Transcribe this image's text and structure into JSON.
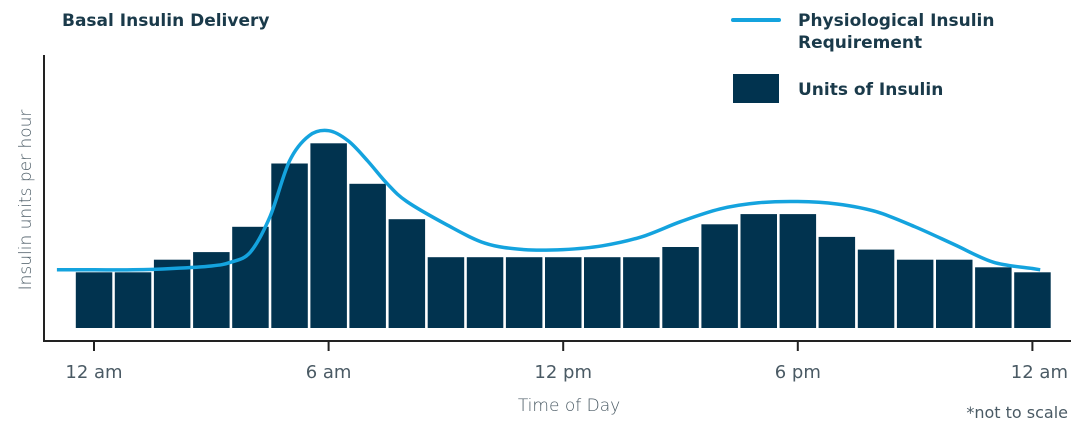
{
  "colors": {
    "bar": "#01334f",
    "line": "#14a3de",
    "title": "#1a3a4a",
    "text": "#4a5a64",
    "axis": "#222222"
  },
  "chart_data": {
    "type": "bar",
    "title": "Basal Insulin Delivery",
    "xlabel": "Time of Day",
    "ylabel": "Insulin units per hour",
    "footnote": "*not to scale",
    "x_ticks": [
      {
        "label": "12 am",
        "hour": 0
      },
      {
        "label": "6 am",
        "hour": 6
      },
      {
        "label": "12 pm",
        "hour": 12
      },
      {
        "label": "6 pm",
        "hour": 18
      },
      {
        "label": "12 am",
        "hour": 24
      }
    ],
    "xlim": [
      -0.95,
      24.2
    ],
    "ylim": [
      0,
      10
    ],
    "grid": false,
    "legend_position": "top-right",
    "series": [
      {
        "name": "Units of Insulin",
        "kind": "bar",
        "hours": [
          0,
          1,
          2,
          3,
          4,
          5,
          6,
          7,
          8,
          9,
          10,
          11,
          12,
          13,
          14,
          15,
          16,
          17,
          18,
          19,
          20,
          21,
          22,
          23,
          24
        ],
        "values": [
          2.2,
          2.2,
          2.7,
          3.0,
          4.0,
          6.5,
          7.3,
          5.7,
          4.3,
          2.8,
          2.8,
          2.8,
          2.8,
          2.8,
          2.8,
          3.2,
          4.1,
          4.5,
          4.5,
          3.6,
          3.1,
          2.7,
          2.7,
          2.4,
          2.2
        ]
      },
      {
        "name": "Physiological Insulin Requirement",
        "kind": "line",
        "hours": [
          -0.95,
          0,
          1,
          2,
          3,
          3.5,
          4,
          4.5,
          5,
          5.5,
          6,
          6.5,
          7,
          7.5,
          8,
          9,
          10,
          11,
          12,
          13,
          14,
          15,
          16,
          17,
          18,
          19,
          20,
          21,
          22,
          23,
          24,
          24.2
        ],
        "values": [
          2.3,
          2.3,
          2.3,
          2.35,
          2.45,
          2.6,
          3.0,
          4.4,
          6.6,
          7.6,
          7.8,
          7.4,
          6.6,
          5.7,
          5.0,
          4.1,
          3.35,
          3.1,
          3.1,
          3.25,
          3.6,
          4.2,
          4.7,
          4.95,
          5.0,
          4.9,
          4.6,
          4.0,
          3.3,
          2.6,
          2.35,
          2.3
        ]
      }
    ]
  }
}
